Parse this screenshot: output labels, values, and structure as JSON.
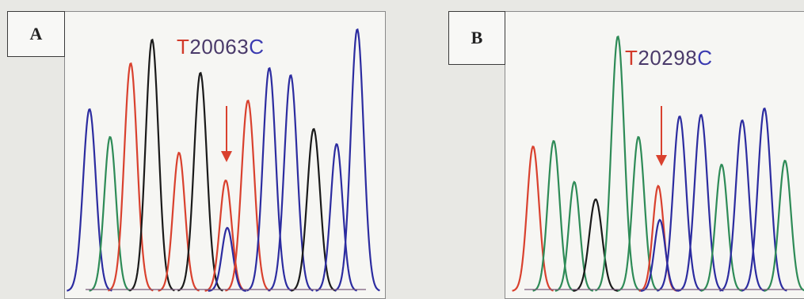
{
  "panels": [
    {
      "id": "a",
      "label": "A",
      "mutation": {
        "ref": "T",
        "position": "20063",
        "alt": "C"
      }
    },
    {
      "id": "b",
      "label": "B",
      "mutation": {
        "ref": "T",
        "position": "20298",
        "alt": "C"
      }
    }
  ],
  "colors": {
    "T": "#d9412e",
    "C": "#2c2ca0",
    "A": "#2e8b57",
    "G": "#1a1a1a",
    "arrow": "#d9412e"
  }
}
